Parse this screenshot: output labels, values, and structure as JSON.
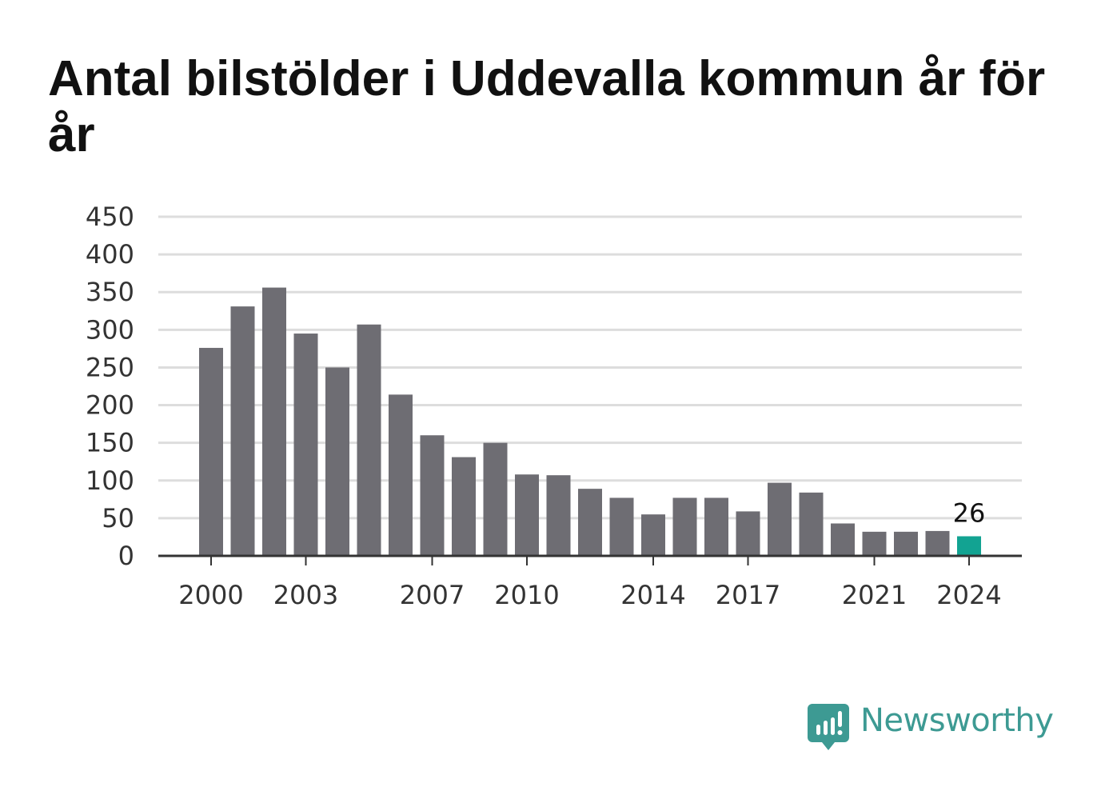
{
  "title": "Antal bilstölder i Uddevalla kommun år för år",
  "brand": {
    "name": "Newsworthy",
    "icon": "newsworthy-logo-icon",
    "color": "#3d9a93"
  },
  "chart_data": {
    "type": "bar",
    "title": "Antal bilstölder i Uddevalla kommun år för år",
    "xlabel": "",
    "ylabel": "",
    "ylim": [
      0,
      450
    ],
    "yticks": [
      0,
      50,
      100,
      150,
      200,
      250,
      300,
      350,
      400,
      450
    ],
    "xtick_labels": [
      "2000",
      "2003",
      "2007",
      "2010",
      "2014",
      "2017",
      "2021",
      "2024"
    ],
    "grid": true,
    "legend": "none",
    "categories": [
      "2000",
      "2001",
      "2002",
      "2003",
      "2004",
      "2005",
      "2006",
      "2007",
      "2008",
      "2009",
      "2010",
      "2011",
      "2012",
      "2013",
      "2014",
      "2015",
      "2016",
      "2017",
      "2018",
      "2019",
      "2020",
      "2021",
      "2022",
      "2023",
      "2024"
    ],
    "values": [
      276,
      331,
      356,
      295,
      250,
      307,
      214,
      160,
      131,
      150,
      108,
      107,
      89,
      77,
      55,
      77,
      77,
      59,
      97,
      84,
      43,
      32,
      32,
      33,
      26
    ],
    "colors": {
      "bar": "#6e6d73",
      "highlight": "#12a392",
      "grid": "#dddddd",
      "axis": "#333333"
    },
    "highlight_index": 24,
    "annotations": [
      {
        "category": "2024",
        "text": "26"
      }
    ]
  }
}
